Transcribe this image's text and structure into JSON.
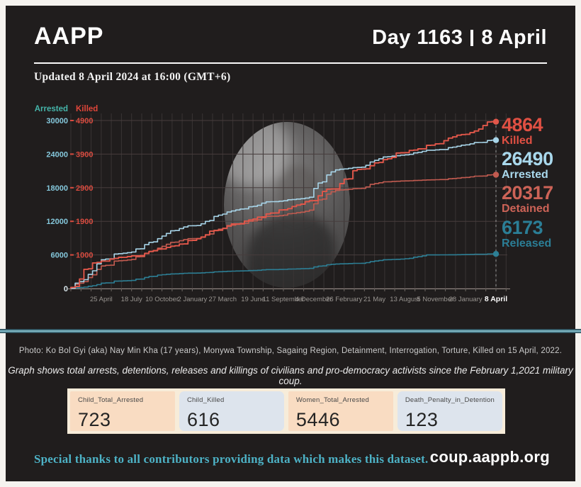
{
  "header": {
    "brand": "AAPP",
    "day_label": "Day 1163",
    "date": "8 April"
  },
  "updated": "Updated 8 April 2024 at 16:00 (GMT+6)",
  "chart_data": {
    "type": "line",
    "x_tick_labels": [
      "25 April",
      "18 July",
      "10 October",
      "2 January",
      "27 March",
      "19 June",
      "11 September",
      "4 December",
      "26 February",
      "21 May",
      "13 August",
      "5 November",
      "28 January",
      "8 April"
    ],
    "x_label_color": "#989490",
    "final_x_label_color": "#ffffff",
    "grid": {
      "h_color": "#473d3d",
      "v_color": "#393434",
      "axis_color": "#948b86",
      "tick_color": "#6e6863",
      "end_line_color": "#9a9a9a"
    },
    "axes": {
      "arrested": {
        "header": "Arrested",
        "max": 30000,
        "ticks": [
          "0",
          "6000",
          "12000",
          "18000",
          "24000",
          "30000"
        ],
        "header_color": "#45b5aa",
        "tick_color": "#85c8dc"
      },
      "killed": {
        "header": "Killed",
        "max": 4900,
        "ticks": [
          "",
          "1000",
          "1900",
          "2900",
          "3900",
          "4900"
        ],
        "header_color": "#e0463a",
        "tick_color": "#d94b3f"
      }
    },
    "series": [
      {
        "name": "Killed",
        "axis": "killed",
        "color": "#e2574a",
        "label_color": "#e05043",
        "total": "4864",
        "values": [
          0,
          760,
          930,
          1150,
          1400,
          1700,
          2000,
          2290,
          2560,
          3060,
          3580,
          3960,
          4180,
          4490,
          4864
        ]
      },
      {
        "name": "Arrested",
        "axis": "arrested",
        "color": "#a7d4e8",
        "label_color": "#a9d8ec",
        "total": "26490",
        "values": [
          0,
          4400,
          6400,
          8900,
          11200,
          13100,
          14600,
          15600,
          16300,
          21300,
          22600,
          23800,
          24700,
          25600,
          26490
        ]
      },
      {
        "name": "Detained",
        "axis": "arrested",
        "color": "#c25b50",
        "label_color": "#cd6357",
        "total": "20317",
        "values": [
          0,
          3400,
          5100,
          7200,
          8900,
          10600,
          12000,
          13000,
          14000,
          17600,
          18600,
          19200,
          19400,
          19800,
          20317
        ]
      },
      {
        "name": "Released",
        "axis": "arrested",
        "color": "#2d7f95",
        "label_color": "#2b7e96",
        "total": "6173",
        "values": [
          0,
          700,
          1400,
          2400,
          2750,
          3000,
          3200,
          3400,
          3600,
          4400,
          4800,
          5250,
          6000,
          6050,
          6173
        ]
      }
    ]
  },
  "captions": {
    "photo": "Photo: Ko Bol Gyi (aka) Nay Min Kha (17 years), Monywa Township, Sagaing Region, Detainment, Interrogation, Torture, Killed on 15 April, 2022.",
    "graph_note": "Graph shows total arrests, detentions, releases and killings of civilians and pro-democracy activists since the February 1,2021 military coup."
  },
  "stats": [
    {
      "label": "Child_Total_Arrested",
      "value": "723"
    },
    {
      "label": "Child_Killed",
      "value": "616"
    },
    {
      "label": "Women_Total_Arrested",
      "value": "5446"
    },
    {
      "label": "Death_Penalty_in_Detention",
      "value": "123"
    }
  ],
  "footer": {
    "thanks": "Special thanks to all contributors providing data which makes this dataset.",
    "site": "coup.aappb.org"
  }
}
